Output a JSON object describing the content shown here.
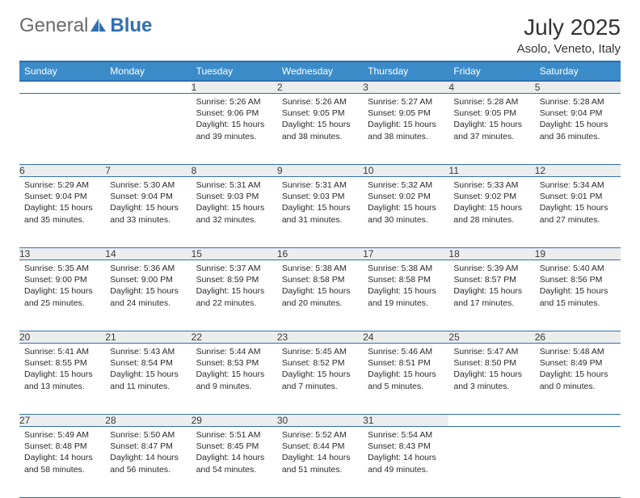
{
  "brand": {
    "part1": "General",
    "part2": "Blue"
  },
  "title": "July 2025",
  "location": "Asolo, Veneto, Italy",
  "colors": {
    "header_bg": "#3b8bc9",
    "header_border": "#2f6fb0",
    "daynum_bg": "#eceeee",
    "text": "#333333"
  },
  "weekdays": [
    "Sunday",
    "Monday",
    "Tuesday",
    "Wednesday",
    "Thursday",
    "Friday",
    "Saturday"
  ],
  "weeks": [
    [
      null,
      null,
      {
        "n": "1",
        "sr": "5:26 AM",
        "ss": "9:06 PM",
        "dl": "15 hours and 39 minutes."
      },
      {
        "n": "2",
        "sr": "5:26 AM",
        "ss": "9:05 PM",
        "dl": "15 hours and 38 minutes."
      },
      {
        "n": "3",
        "sr": "5:27 AM",
        "ss": "9:05 PM",
        "dl": "15 hours and 38 minutes."
      },
      {
        "n": "4",
        "sr": "5:28 AM",
        "ss": "9:05 PM",
        "dl": "15 hours and 37 minutes."
      },
      {
        "n": "5",
        "sr": "5:28 AM",
        "ss": "9:04 PM",
        "dl": "15 hours and 36 minutes."
      }
    ],
    [
      {
        "n": "6",
        "sr": "5:29 AM",
        "ss": "9:04 PM",
        "dl": "15 hours and 35 minutes."
      },
      {
        "n": "7",
        "sr": "5:30 AM",
        "ss": "9:04 PM",
        "dl": "15 hours and 33 minutes."
      },
      {
        "n": "8",
        "sr": "5:31 AM",
        "ss": "9:03 PM",
        "dl": "15 hours and 32 minutes."
      },
      {
        "n": "9",
        "sr": "5:31 AM",
        "ss": "9:03 PM",
        "dl": "15 hours and 31 minutes."
      },
      {
        "n": "10",
        "sr": "5:32 AM",
        "ss": "9:02 PM",
        "dl": "15 hours and 30 minutes."
      },
      {
        "n": "11",
        "sr": "5:33 AM",
        "ss": "9:02 PM",
        "dl": "15 hours and 28 minutes."
      },
      {
        "n": "12",
        "sr": "5:34 AM",
        "ss": "9:01 PM",
        "dl": "15 hours and 27 minutes."
      }
    ],
    [
      {
        "n": "13",
        "sr": "5:35 AM",
        "ss": "9:00 PM",
        "dl": "15 hours and 25 minutes."
      },
      {
        "n": "14",
        "sr": "5:36 AM",
        "ss": "9:00 PM",
        "dl": "15 hours and 24 minutes."
      },
      {
        "n": "15",
        "sr": "5:37 AM",
        "ss": "8:59 PM",
        "dl": "15 hours and 22 minutes."
      },
      {
        "n": "16",
        "sr": "5:38 AM",
        "ss": "8:58 PM",
        "dl": "15 hours and 20 minutes."
      },
      {
        "n": "17",
        "sr": "5:38 AM",
        "ss": "8:58 PM",
        "dl": "15 hours and 19 minutes."
      },
      {
        "n": "18",
        "sr": "5:39 AM",
        "ss": "8:57 PM",
        "dl": "15 hours and 17 minutes."
      },
      {
        "n": "19",
        "sr": "5:40 AM",
        "ss": "8:56 PM",
        "dl": "15 hours and 15 minutes."
      }
    ],
    [
      {
        "n": "20",
        "sr": "5:41 AM",
        "ss": "8:55 PM",
        "dl": "15 hours and 13 minutes."
      },
      {
        "n": "21",
        "sr": "5:43 AM",
        "ss": "8:54 PM",
        "dl": "15 hours and 11 minutes."
      },
      {
        "n": "22",
        "sr": "5:44 AM",
        "ss": "8:53 PM",
        "dl": "15 hours and 9 minutes."
      },
      {
        "n": "23",
        "sr": "5:45 AM",
        "ss": "8:52 PM",
        "dl": "15 hours and 7 minutes."
      },
      {
        "n": "24",
        "sr": "5:46 AM",
        "ss": "8:51 PM",
        "dl": "15 hours and 5 minutes."
      },
      {
        "n": "25",
        "sr": "5:47 AM",
        "ss": "8:50 PM",
        "dl": "15 hours and 3 minutes."
      },
      {
        "n": "26",
        "sr": "5:48 AM",
        "ss": "8:49 PM",
        "dl": "15 hours and 0 minutes."
      }
    ],
    [
      {
        "n": "27",
        "sr": "5:49 AM",
        "ss": "8:48 PM",
        "dl": "14 hours and 58 minutes."
      },
      {
        "n": "28",
        "sr": "5:50 AM",
        "ss": "8:47 PM",
        "dl": "14 hours and 56 minutes."
      },
      {
        "n": "29",
        "sr": "5:51 AM",
        "ss": "8:45 PM",
        "dl": "14 hours and 54 minutes."
      },
      {
        "n": "30",
        "sr": "5:52 AM",
        "ss": "8:44 PM",
        "dl": "14 hours and 51 minutes."
      },
      {
        "n": "31",
        "sr": "5:54 AM",
        "ss": "8:43 PM",
        "dl": "14 hours and 49 minutes."
      },
      null,
      null
    ]
  ],
  "labels": {
    "sunrise": "Sunrise:",
    "sunset": "Sunset:",
    "daylight": "Daylight:"
  }
}
